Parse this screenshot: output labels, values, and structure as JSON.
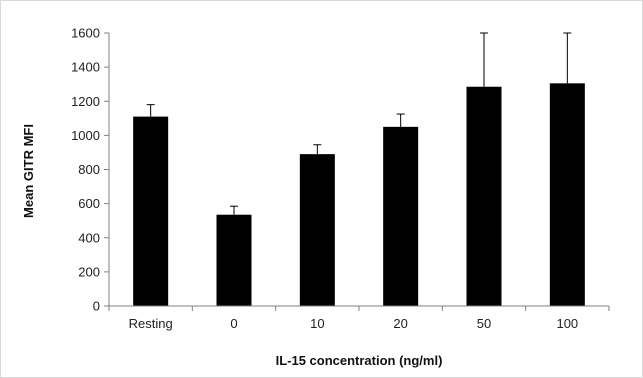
{
  "chart_data": {
    "type": "bar",
    "title": "",
    "xlabel": "IL-15 concentration (ng/ml)",
    "ylabel": "Mean GITR MFI",
    "categories": [
      "Resting",
      "0",
      "10",
      "20",
      "50",
      "100"
    ],
    "values": [
      1110,
      535,
      890,
      1050,
      1285,
      1305
    ],
    "error_upper": [
      70,
      50,
      55,
      75,
      315,
      295
    ],
    "ylim": [
      0,
      1600
    ],
    "yticks": [
      0,
      200,
      400,
      600,
      800,
      1000,
      1200,
      1400,
      1600
    ],
    "grid": false,
    "legend": "none",
    "colors": {
      "bar": "#000000",
      "axis": "#808080",
      "error_bar": "#000000",
      "frame": "#d9d9d9"
    }
  }
}
